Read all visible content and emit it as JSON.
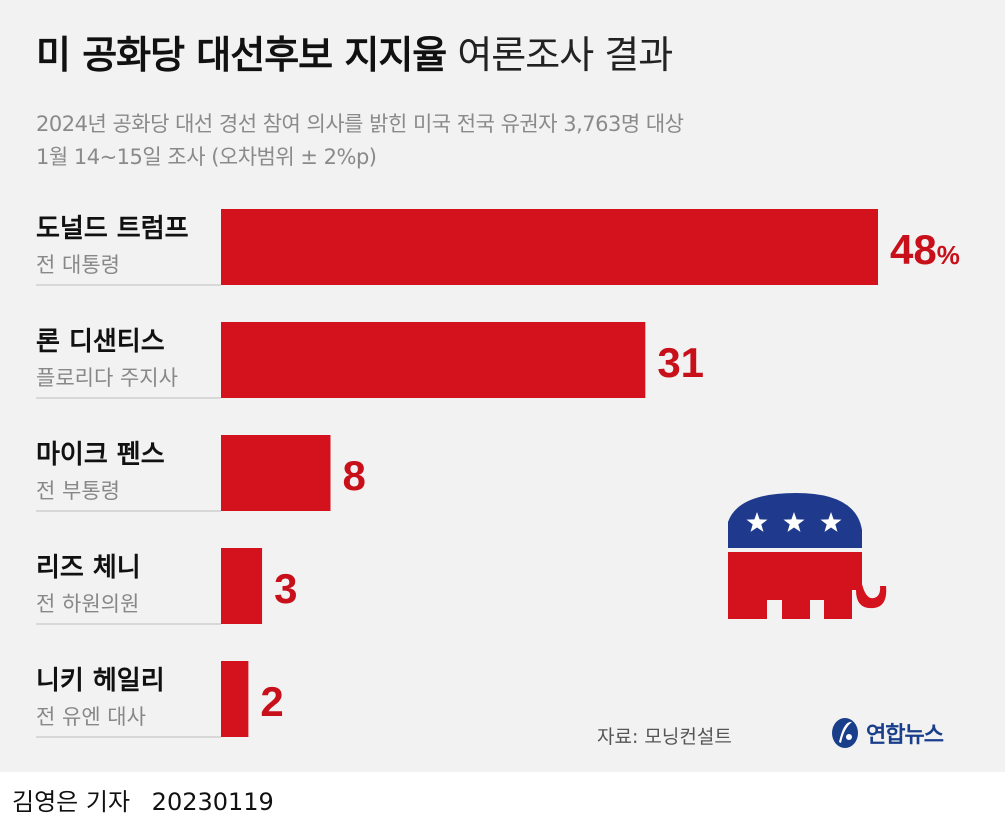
{
  "title": {
    "bold": "미 공화당 대선후보 지지율",
    "light": "여론조사 결과"
  },
  "subtitle": {
    "line1": "2024년 공화당 대선 경선 참여 의사를 밝힌 미국 전국 유권자 3,763명 대상",
    "line2": "1월 14~15일 조사 (오차범위 ± 2%p)"
  },
  "chart_data": {
    "type": "bar",
    "orientation": "horizontal",
    "categories": [
      "도널드 트럼프",
      "론 디샌티스",
      "마이크 펜스",
      "리즈 체니",
      "니키 헤일리"
    ],
    "category_subtitles": [
      "전 대통령",
      "플로리다 주지사",
      "전 부통령",
      "전 하원의원",
      "전 유엔 대사"
    ],
    "values": [
      48,
      31,
      8,
      3,
      2
    ],
    "value_labels": [
      "48",
      "31",
      "8",
      "3",
      "2"
    ],
    "unit": "%",
    "bar_color": "#d4121e",
    "label_color": "#c8101b",
    "xlim": [
      0,
      48
    ]
  },
  "source": "자료: 모닝컨설트",
  "logo": {
    "text": "연합뉴스",
    "icon": "yonhap-globe-icon",
    "color": "#1a3f8a"
  },
  "elephant_icon": {
    "name": "gop-elephant-icon",
    "top_color": "#1f3a8c",
    "bottom_color": "#d4121e"
  },
  "byline": {
    "reporter": "김영은 기자",
    "date": "20230119"
  }
}
